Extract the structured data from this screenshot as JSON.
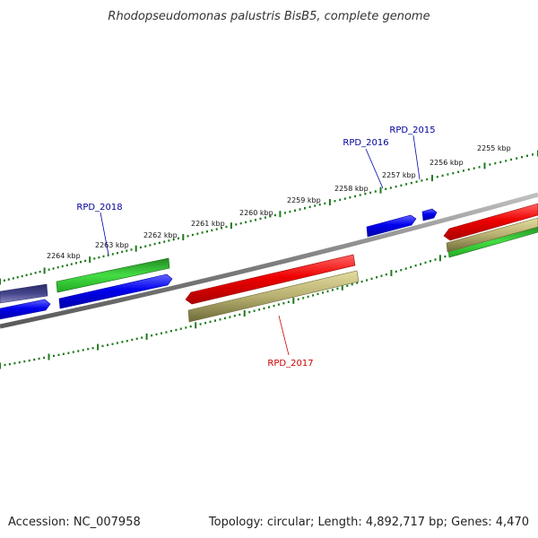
{
  "title": "Rhodopseudomonas palustris BisB5, complete genome",
  "footer": {
    "accession": "Accession: NC_007958",
    "summary": "Topology: circular; Length: 4,892,717 bp; Genes: 4,470"
  },
  "ticks": [
    "2255 kbp",
    "2256 kbp",
    "2257 kbp",
    "2258 kbp",
    "2259 kbp",
    "2260 kbp",
    "2261 kbp",
    "2262 kbp",
    "2263 kbp",
    "2264 kbp"
  ],
  "genes": [
    {
      "name": "RPD_2015",
      "color": "#000099"
    },
    {
      "name": "RPD_2016",
      "color": "#000099"
    },
    {
      "name": "RPD_2017",
      "color": "#cc0000"
    },
    {
      "name": "RPD_2018",
      "color": "#000099"
    }
  ],
  "colors": {
    "backbone": "#808080",
    "tick": "#1f7a1f",
    "forward_cds": "#0000ee",
    "reverse_cds": "#ee0000",
    "rna": "#33cc33",
    "olive": "#b8b070",
    "indigo": "#3f3f8f"
  }
}
